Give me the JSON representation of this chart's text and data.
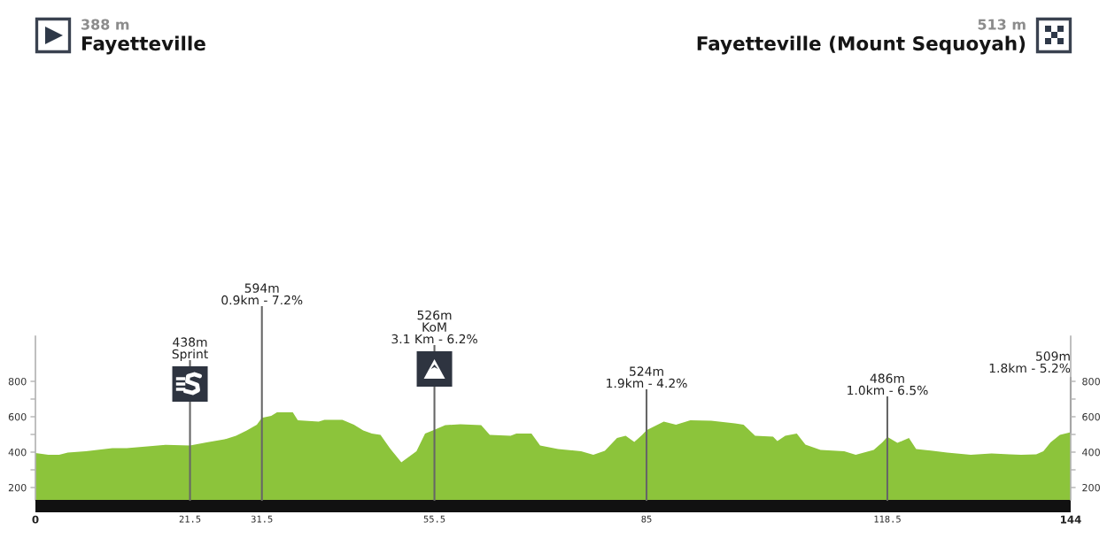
{
  "chart_data": {
    "type": "area",
    "x": [
      0,
      1.8,
      3.3,
      4.5,
      7.0,
      10.7,
      12.7,
      15.6,
      18.1,
      21.5,
      23.8,
      26.3,
      27.9,
      29.4,
      30.8,
      31.5,
      32.8,
      33.6,
      35.8,
      36.5,
      39.4,
      40.2,
      42.7,
      44.3,
      45.6,
      46.8,
      48.0,
      49.3,
      50.9,
      53.0,
      54.2,
      55.5,
      57.0,
      59.1,
      62.0,
      63.2,
      66.1,
      66.9,
      69.0,
      70.2,
      72.7,
      75.9,
      77.6,
      79.2,
      80.9,
      82.1,
      83.3,
      84.4,
      85,
      87.4,
      89.1,
      91.1,
      94.0,
      97.3,
      98.5,
      100.1,
      102.6,
      103.2,
      104.3,
      105.9,
      107.1,
      109.2,
      112.5,
      114.1,
      116.6,
      117.8,
      118.5,
      119.9,
      121.5,
      122.5,
      124.8,
      126.8,
      130.1,
      133.0,
      135.5,
      137.1,
      139.2,
      140.2,
      141.2,
      142.5,
      144
    ],
    "values": [
      395,
      385,
      385,
      398,
      405,
      422,
      422,
      433,
      441,
      438,
      455,
      472,
      492,
      522,
      555,
      594,
      605,
      625,
      625,
      580,
      572,
      583,
      583,
      555,
      522,
      505,
      497,
      422,
      342,
      405,
      505,
      526,
      552,
      558,
      552,
      497,
      492,
      505,
      505,
      438,
      418,
      405,
      385,
      408,
      480,
      492,
      458,
      497,
      524,
      572,
      555,
      580,
      577,
      563,
      555,
      492,
      488,
      463,
      492,
      505,
      442,
      413,
      405,
      385,
      413,
      455,
      486,
      452,
      480,
      418,
      408,
      398,
      385,
      392,
      388,
      385,
      388,
      405,
      455,
      497,
      513
    ],
    "color": "#8cc43b",
    "xlim": [
      0,
      144
    ],
    "xticks": [
      0,
      21.5,
      31.5,
      55.5,
      85,
      118.5,
      144
    ],
    "ylim": [
      130,
      1055
    ],
    "yticks": [
      200,
      {
        "value": 300,
        "label": null
      },
      400,
      {
        "value": 500,
        "label": null
      },
      600,
      {
        "value": 700,
        "label": null
      },
      800
    ],
    "y2lim": [
      130,
      1055
    ],
    "y2ticks": [
      200,
      {
        "value": 300,
        "label": null
      },
      400,
      {
        "value": 500,
        "label": null
      },
      600,
      {
        "value": 700,
        "label": null
      },
      800
    ],
    "ref_lines": [
      {
        "axis": "x",
        "value": 21.5,
        "label": "438m\nSprint",
        "color": "#666666"
      },
      {
        "axis": "x",
        "value": 31.5,
        "label": "594m\n0.9km - 7.2%",
        "color": "#666666"
      },
      {
        "axis": "x",
        "value": 55.5,
        "label": "526m\nKoM\n3.1 Km - 6.2%",
        "color": "#666666"
      },
      {
        "axis": "x",
        "value": 85,
        "label": "524m\n1.9km - 4.2%",
        "color": "#666666"
      },
      {
        "axis": "x",
        "value": 118.5,
        "label": "486m\n1.0km - 6.5%",
        "color": "#666666"
      }
    ],
    "annotations": [
      "388 m",
      "Fayetteville",
      "513 m",
      "Fayetteville (Mount Sequoyah)",
      {
        "text": "509m\n1.8km - 5.2%",
        "x": 144,
        "y": 509
      }
    ]
  }
}
